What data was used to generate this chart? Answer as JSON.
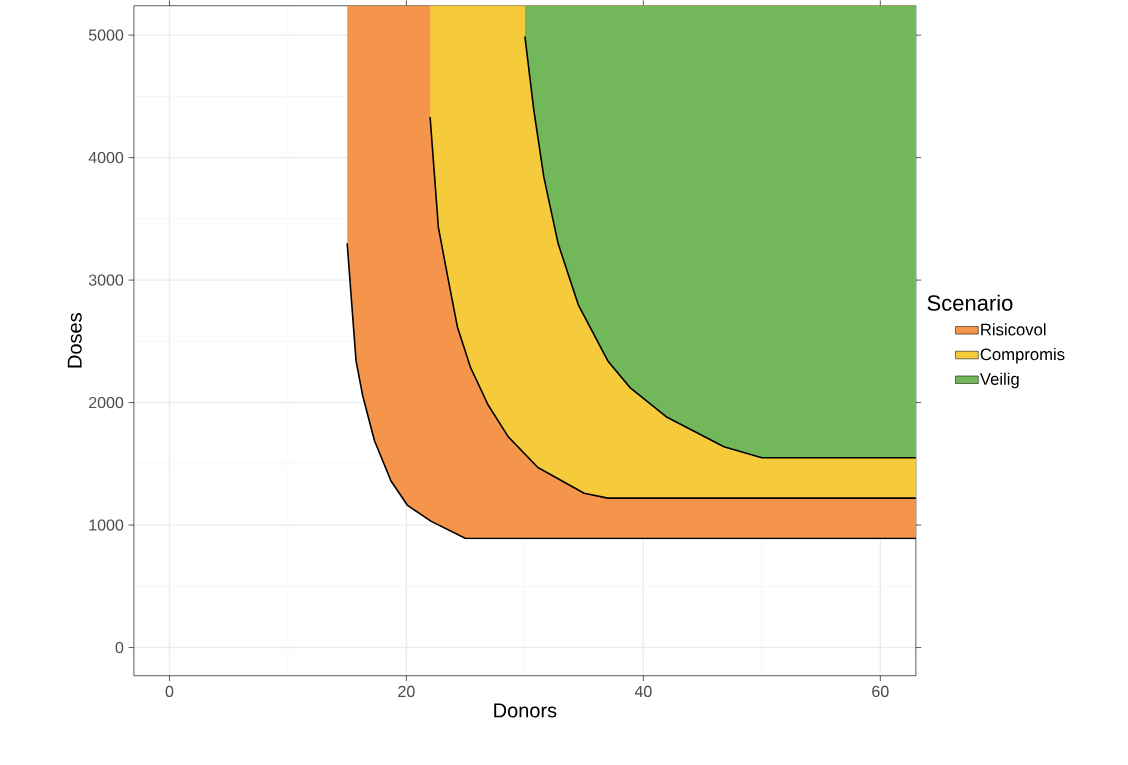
{
  "chart_data": {
    "type": "area",
    "xlabel": "Donors",
    "ylabel": "Doses",
    "legend_title": "Scenario",
    "xlim": [
      -3,
      63
    ],
    "ylim": [
      -230,
      5240
    ],
    "xticks": [
      0,
      20,
      40,
      60
    ],
    "yticks": [
      0,
      1000,
      2000,
      3000,
      4000,
      5000
    ],
    "grid": true,
    "legend": "right",
    "series": [
      {
        "name": "Risicovol",
        "color": "#f4954b",
        "x": [
          15,
          15.75,
          16.3,
          17.3,
          18.7,
          20.1,
          22.1,
          25,
          63
        ],
        "values": [
          3300,
          2340,
          2060,
          1690,
          1360,
          1160,
          1030,
          890,
          890
        ]
      },
      {
        "name": "Compromis",
        "color": "#f5cb3c",
        "x": [
          22,
          22.7,
          23.5,
          24.3,
          25.4,
          26.9,
          28.6,
          31.1,
          35,
          37,
          63
        ],
        "values": [
          4330,
          3430,
          3020,
          2620,
          2290,
          1980,
          1720,
          1470,
          1260,
          1220,
          1220
        ]
      },
      {
        "name": "Veilig",
        "color": "#72b85a",
        "x": [
          30,
          30.75,
          31.6,
          32.8,
          34.5,
          37,
          38.9,
          42,
          46.8,
          50,
          63
        ],
        "values": [
          4990,
          4390,
          3840,
          3300,
          2800,
          2340,
          2120,
          1880,
          1640,
          1550,
          1550
        ]
      }
    ]
  }
}
